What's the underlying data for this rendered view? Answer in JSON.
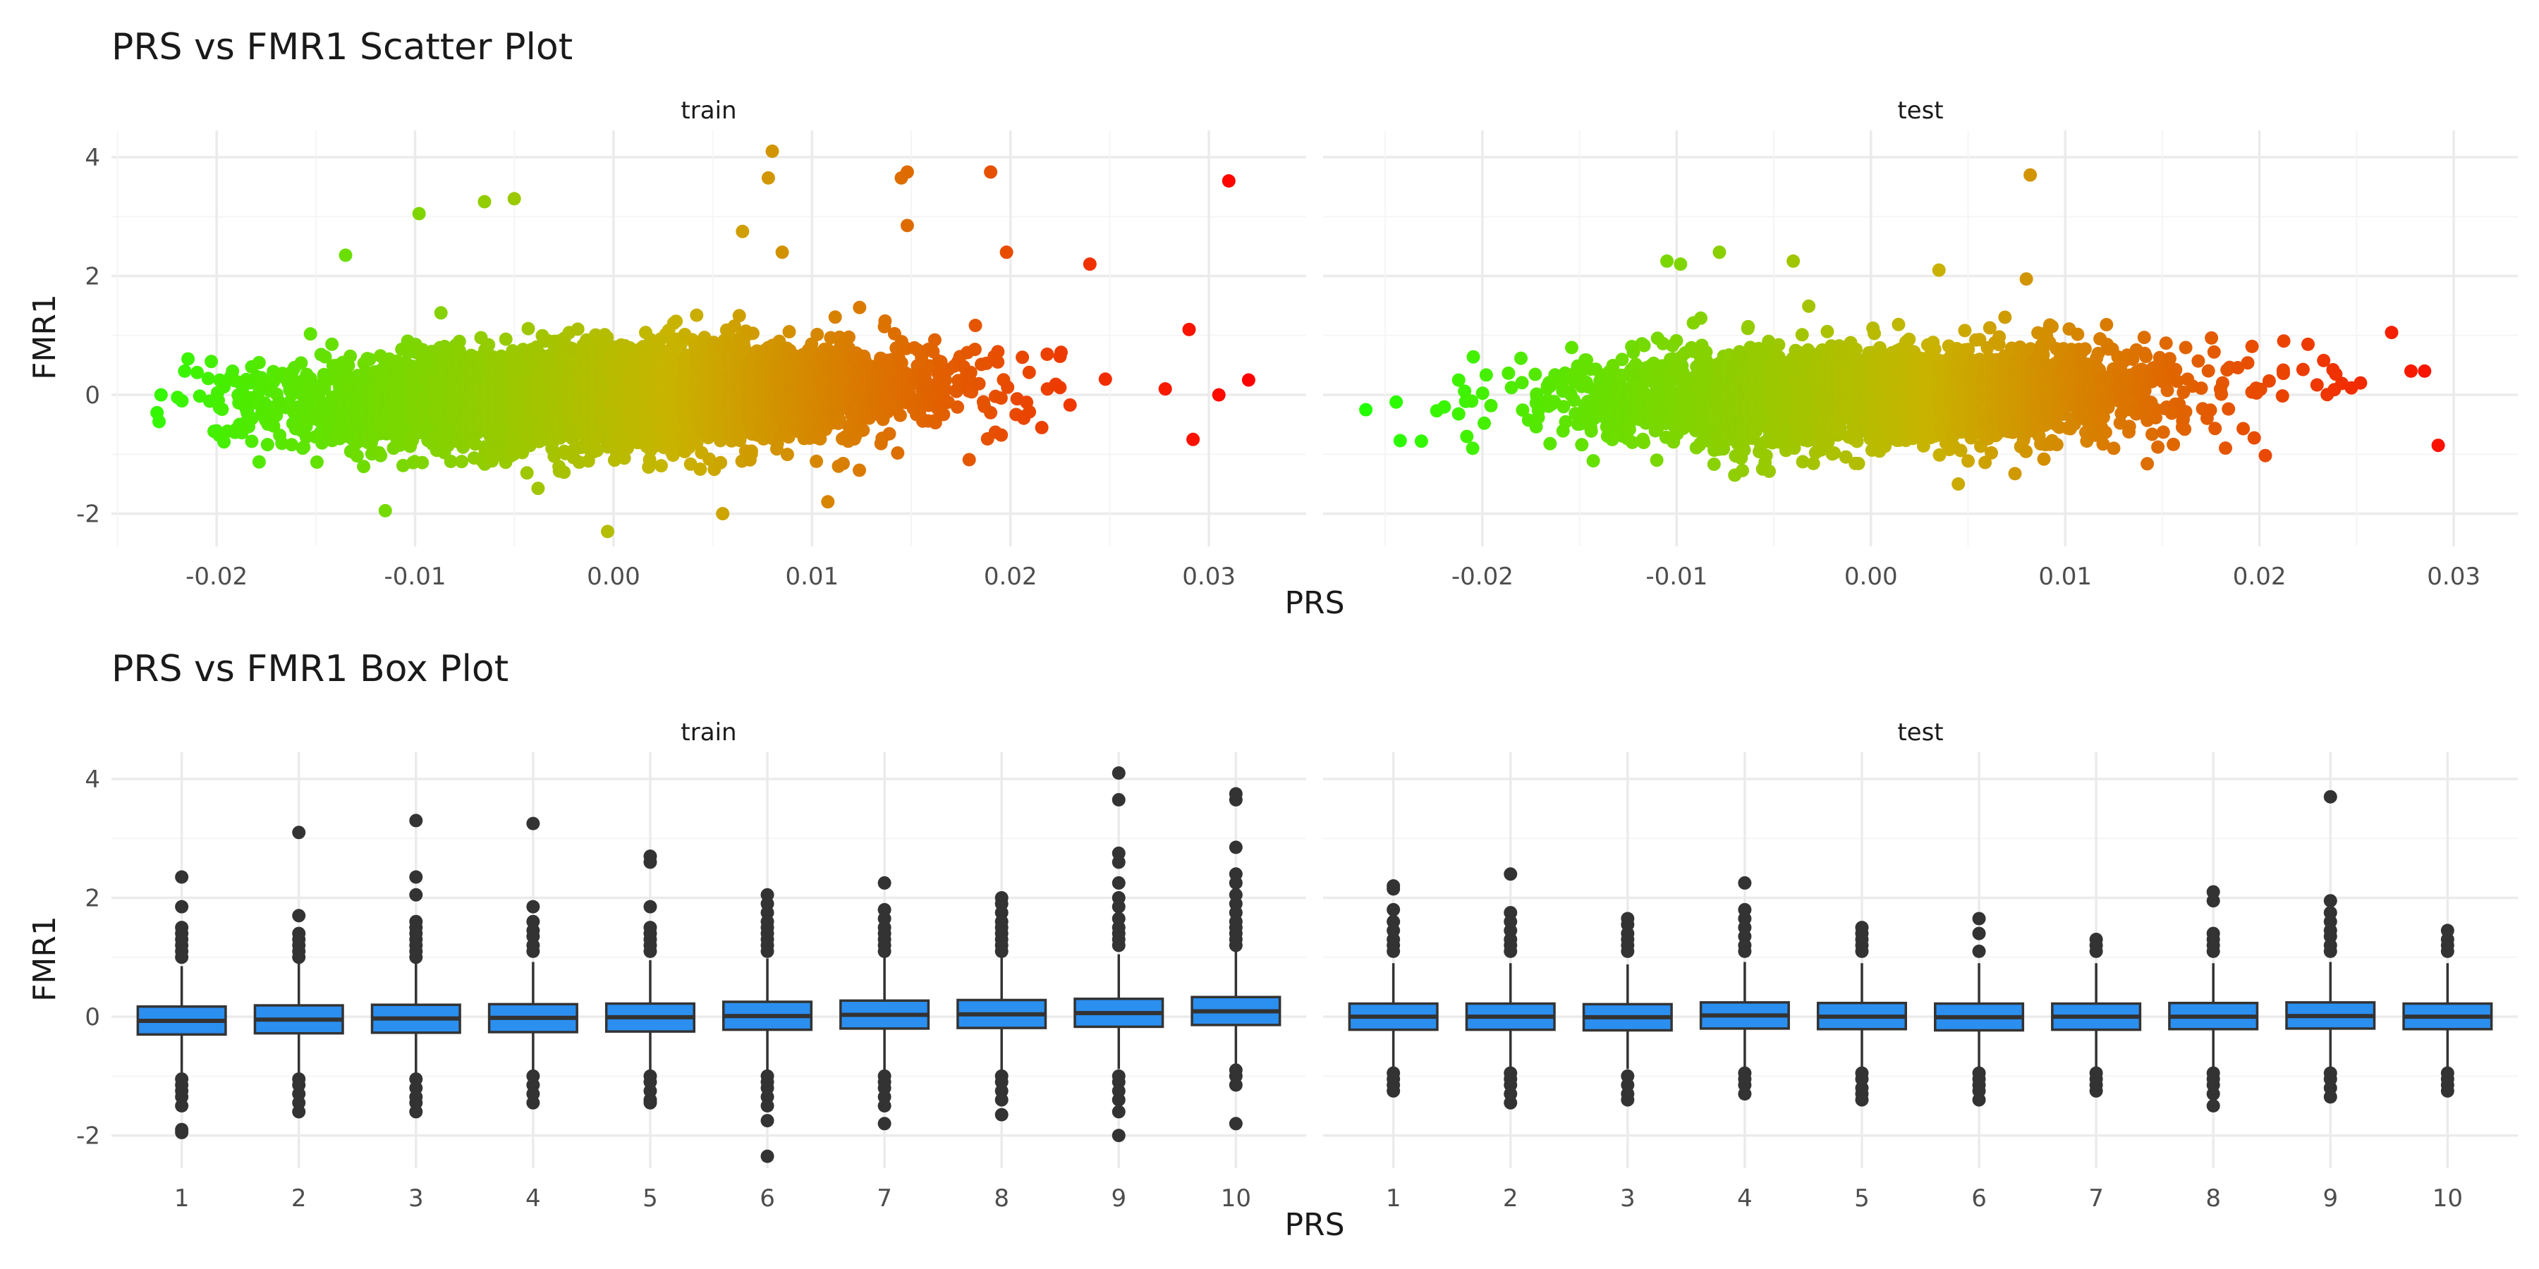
{
  "colors": {
    "background": "#ffffff",
    "grid_major": "#ebebeb",
    "grid_minor": "#f5f5f5",
    "text_dark": "#1a1a1a",
    "tick_text": "#4d4d4d",
    "box_fill": "#2b8ff0",
    "box_line": "#333333",
    "outlier": "#333333",
    "gradient_low": "#22ff00",
    "gradient_mid": "#c8b400",
    "gradient_high": "#ff0000"
  },
  "chart_data": [
    {
      "type": "scatter",
      "title": "PRS vs FMR1 Scatter Plot",
      "xlabel": "PRS",
      "ylabel": "FMR1",
      "grid": true,
      "legend": "none",
      "color_mapping": "PRS (green → yellow → red)",
      "panels": [
        {
          "name": "train",
          "xlim": [
            -0.0253,
            0.0349
          ],
          "ylim": [
            -2.55,
            4.45
          ],
          "x_ticks": [
            -0.02,
            -0.01,
            0.0,
            0.01,
            0.02,
            0.03
          ],
          "x_tick_labels": [
            "-0.02",
            "-0.01",
            "0.00",
            "0.01",
            "0.02",
            "0.03"
          ],
          "y_ticks": [
            -2,
            0,
            2,
            4
          ],
          "y_tick_labels": [
            "-2",
            "0",
            "2",
            "4"
          ],
          "x_range": [
            -0.023,
            0.032
          ],
          "main_cloud": {
            "x_mean": 0.0,
            "x_sd": 0.0075,
            "y_mean": 0.0,
            "y_sd": 0.4,
            "y_slope": 8,
            "n": 5000
          },
          "outliers": [
            {
              "x": 0.008,
              "y": 4.1
            },
            {
              "x": 0.0078,
              "y": 3.65
            },
            {
              "x": 0.031,
              "y": 3.6
            },
            {
              "x": 0.019,
              "y": 3.75
            },
            {
              "x": 0.0148,
              "y": 3.75
            },
            {
              "x": 0.0145,
              "y": 3.65
            },
            {
              "x": -0.0065,
              "y": 3.25
            },
            {
              "x": -0.005,
              "y": 3.3
            },
            {
              "x": -0.0098,
              "y": 3.05
            },
            {
              "x": 0.0065,
              "y": 2.75
            },
            {
              "x": 0.0148,
              "y": 2.85
            },
            {
              "x": -0.0135,
              "y": 2.35
            },
            {
              "x": 0.0198,
              "y": 2.4
            },
            {
              "x": 0.024,
              "y": 2.2
            },
            {
              "x": 0.0085,
              "y": 2.4
            },
            {
              "x": 0.032,
              "y": 0.25
            },
            {
              "x": 0.0305,
              "y": 0.0
            },
            {
              "x": 0.0292,
              "y": -0.75
            },
            {
              "x": 0.029,
              "y": 1.1
            },
            {
              "x": -0.0003,
              "y": -2.3
            },
            {
              "x": 0.0055,
              "y": -2.0
            },
            {
              "x": 0.0108,
              "y": -1.8
            },
            {
              "x": -0.0115,
              "y": -1.95
            },
            {
              "x": -0.0229,
              "y": -0.45
            },
            {
              "x": -0.023,
              "y": -0.3
            },
            {
              "x": -0.0228,
              "y": 0.0
            },
            {
              "x": 0.0278,
              "y": 0.1
            }
          ]
        },
        {
          "name": "test",
          "xlim": [
            -0.0282,
            0.0333
          ],
          "ylim": [
            -2.55,
            4.45
          ],
          "x_ticks": [
            -0.02,
            -0.01,
            0.0,
            0.01,
            0.02,
            0.03
          ],
          "x_tick_labels": [
            "-0.02",
            "-0.01",
            "0.00",
            "0.01",
            "0.02",
            "0.03"
          ],
          "y_ticks": [
            -2,
            0,
            2,
            4
          ],
          "y_tick_labels": [
            "-2",
            "0",
            "2",
            "4"
          ],
          "x_range": [
            -0.026,
            0.029
          ],
          "main_cloud": {
            "x_mean": 0.0,
            "x_sd": 0.0075,
            "y_mean": 0.0,
            "y_sd": 0.4,
            "y_slope": 6,
            "n": 3000
          },
          "outliers": [
            {
              "x": 0.0082,
              "y": 3.7
            },
            {
              "x": -0.0078,
              "y": 2.4
            },
            {
              "x": -0.0098,
              "y": 2.2
            },
            {
              "x": -0.0105,
              "y": 2.25
            },
            {
              "x": -0.004,
              "y": 2.25
            },
            {
              "x": 0.0035,
              "y": 2.1
            },
            {
              "x": 0.008,
              "y": 1.95
            },
            {
              "x": -0.026,
              "y": -0.25
            },
            {
              "x": -0.0205,
              "y": -0.9
            },
            {
              "x": -0.0208,
              "y": -0.7
            },
            {
              "x": 0.0292,
              "y": -0.85
            },
            {
              "x": 0.0285,
              "y": 0.4
            },
            {
              "x": 0.0278,
              "y": 0.4
            },
            {
              "x": 0.0268,
              "y": 1.05
            },
            {
              "x": 0.0252,
              "y": 0.2
            },
            {
              "x": 0.0045,
              "y": -1.5
            },
            {
              "x": 0.0225,
              "y": 0.85
            }
          ]
        }
      ]
    },
    {
      "type": "box",
      "title": "PRS vs FMR1 Box Plot",
      "xlabel": "PRS",
      "ylabel": "FMR1",
      "grid": true,
      "legend": "none",
      "categories": [
        "1",
        "2",
        "3",
        "4",
        "5",
        "6",
        "7",
        "8",
        "9",
        "10"
      ],
      "panels": [
        {
          "name": "train",
          "ylim": [
            -2.55,
            4.45
          ],
          "y_ticks": [
            -2,
            0,
            2,
            4
          ],
          "y_tick_labels": [
            "-2",
            "0",
            "2",
            "4"
          ],
          "boxes": [
            {
              "q1": -0.3,
              "median": -0.07,
              "q3": 0.17,
              "whisker_low": -0.95,
              "whisker_high": 0.85,
              "outliers": [
                2.35,
                1.85,
                1.5,
                1.4,
                1.3,
                1.2,
                1.1,
                1.0,
                -1.05,
                -1.15,
                -1.25,
                -1.35,
                -1.5,
                -1.9,
                -1.95
              ]
            },
            {
              "q1": -0.28,
              "median": -0.05,
              "q3": 0.19,
              "whisker_low": -0.95,
              "whisker_high": 0.9,
              "outliers": [
                3.1,
                1.7,
                1.4,
                1.3,
                1.2,
                1.1,
                1.0,
                -1.05,
                -1.15,
                -1.3,
                -1.45,
                -1.6
              ]
            },
            {
              "q1": -0.27,
              "median": -0.03,
              "q3": 0.2,
              "whisker_low": -0.95,
              "whisker_high": 0.9,
              "outliers": [
                3.3,
                2.35,
                2.05,
                1.6,
                1.5,
                1.4,
                1.3,
                1.2,
                1.1,
                1.0,
                -1.05,
                -1.2,
                -1.35,
                -1.45,
                -1.6
              ]
            },
            {
              "q1": -0.26,
              "median": -0.02,
              "q3": 0.21,
              "whisker_low": -0.95,
              "whisker_high": 0.92,
              "outliers": [
                3.25,
                1.85,
                1.6,
                1.45,
                1.35,
                1.2,
                1.1,
                -1.0,
                -1.15,
                -1.3,
                -1.45
              ]
            },
            {
              "q1": -0.25,
              "median": -0.01,
              "q3": 0.22,
              "whisker_low": -0.95,
              "whisker_high": 0.95,
              "outliers": [
                2.7,
                2.6,
                1.85,
                1.5,
                1.4,
                1.3,
                1.2,
                1.1,
                -1.0,
                -1.1,
                -1.25,
                -1.4,
                -1.45
              ]
            },
            {
              "q1": -0.22,
              "median": 0.01,
              "q3": 0.25,
              "whisker_low": -0.92,
              "whisker_high": 0.98,
              "outliers": [
                2.05,
                1.9,
                1.75,
                1.6,
                1.5,
                1.4,
                1.3,
                1.2,
                1.1,
                -1.0,
                -1.1,
                -1.2,
                -1.35,
                -1.5,
                -1.75,
                -2.35
              ]
            },
            {
              "q1": -0.2,
              "median": 0.03,
              "q3": 0.27,
              "whisker_low": -0.92,
              "whisker_high": 1.0,
              "outliers": [
                2.25,
                1.8,
                1.65,
                1.5,
                1.4,
                1.3,
                1.2,
                1.1,
                -1.0,
                -1.1,
                -1.2,
                -1.35,
                -1.5,
                -1.8
              ]
            },
            {
              "q1": -0.19,
              "median": 0.04,
              "q3": 0.28,
              "whisker_low": -0.9,
              "whisker_high": 1.0,
              "outliers": [
                2.0,
                1.9,
                1.75,
                1.6,
                1.5,
                1.4,
                1.3,
                1.2,
                1.1,
                -1.0,
                -1.1,
                -1.25,
                -1.4,
                -1.65
              ]
            },
            {
              "q1": -0.17,
              "median": 0.06,
              "q3": 0.3,
              "whisker_low": -0.88,
              "whisker_high": 1.05,
              "outliers": [
                4.1,
                3.65,
                2.75,
                2.6,
                2.25,
                2.0,
                1.85,
                1.65,
                1.5,
                1.4,
                1.3,
                1.2,
                -1.0,
                -1.1,
                -1.25,
                -1.4,
                -1.6,
                -2.0
              ]
            },
            {
              "q1": -0.14,
              "median": 0.09,
              "q3": 0.33,
              "whisker_low": -0.85,
              "whisker_high": 1.1,
              "outliers": [
                3.75,
                3.65,
                2.85,
                2.4,
                2.25,
                2.05,
                1.9,
                1.75,
                1.6,
                1.5,
                1.4,
                1.3,
                1.2,
                -0.9,
                -1.0,
                -1.15,
                -1.8
              ]
            }
          ]
        },
        {
          "name": "test",
          "ylim": [
            -2.55,
            4.45
          ],
          "y_ticks": [
            -2,
            0,
            2,
            4
          ],
          "y_tick_labels": [
            "-2",
            "0",
            "2",
            "4"
          ],
          "boxes": [
            {
              "q1": -0.22,
              "median": 0.0,
              "q3": 0.22,
              "whisker_low": -0.88,
              "whisker_high": 0.9,
              "outliers": [
                2.2,
                2.15,
                1.8,
                1.6,
                1.45,
                1.3,
                1.2,
                1.1,
                -0.95,
                -1.05,
                -1.15,
                -1.25
              ]
            },
            {
              "q1": -0.22,
              "median": 0.0,
              "q3": 0.22,
              "whisker_low": -0.88,
              "whisker_high": 0.9,
              "outliers": [
                2.4,
                1.75,
                1.6,
                1.45,
                1.3,
                1.2,
                1.1,
                -0.95,
                -1.05,
                -1.15,
                -1.3,
                -1.45
              ]
            },
            {
              "q1": -0.23,
              "median": -0.01,
              "q3": 0.21,
              "whisker_low": -0.88,
              "whisker_high": 0.88,
              "outliers": [
                1.65,
                1.55,
                1.4,
                1.3,
                1.2,
                1.1,
                -1.0,
                -1.15,
                -1.3,
                -1.4
              ]
            },
            {
              "q1": -0.2,
              "median": 0.02,
              "q3": 0.24,
              "whisker_low": -0.86,
              "whisker_high": 0.92,
              "outliers": [
                2.25,
                1.8,
                1.65,
                1.5,
                1.35,
                1.2,
                1.1,
                -0.95,
                -1.05,
                -1.15,
                -1.3
              ]
            },
            {
              "q1": -0.21,
              "median": 0.0,
              "q3": 0.23,
              "whisker_low": -0.88,
              "whisker_high": 0.9,
              "outliers": [
                1.5,
                1.4,
                1.3,
                1.2,
                1.1,
                -0.95,
                -1.05,
                -1.2,
                -1.3,
                -1.4
              ]
            },
            {
              "q1": -0.23,
              "median": -0.01,
              "q3": 0.22,
              "whisker_low": -0.88,
              "whisker_high": 0.9,
              "outliers": [
                1.65,
                1.4,
                1.1,
                -0.95,
                -1.05,
                -1.15,
                -1.25,
                -1.4
              ]
            },
            {
              "q1": -0.22,
              "median": 0.0,
              "q3": 0.22,
              "whisker_low": -0.88,
              "whisker_high": 0.9,
              "outliers": [
                1.3,
                1.2,
                1.1,
                -0.95,
                -1.05,
                -1.15,
                -1.25
              ]
            },
            {
              "q1": -0.21,
              "median": 0.0,
              "q3": 0.23,
              "whisker_low": -0.87,
              "whisker_high": 0.9,
              "outliers": [
                2.1,
                1.95,
                1.4,
                1.3,
                1.2,
                1.1,
                -0.95,
                -1.05,
                -1.15,
                -1.3,
                -1.5
              ]
            },
            {
              "q1": -0.2,
              "median": 0.01,
              "q3": 0.24,
              "whisker_low": -0.86,
              "whisker_high": 0.92,
              "outliers": [
                3.7,
                1.95,
                1.75,
                1.6,
                1.45,
                1.35,
                1.2,
                1.1,
                -0.95,
                -1.05,
                -1.2,
                -1.35
              ]
            },
            {
              "q1": -0.21,
              "median": 0.0,
              "q3": 0.22,
              "whisker_low": -0.88,
              "whisker_high": 0.9,
              "outliers": [
                1.45,
                1.3,
                1.2,
                1.1,
                -0.95,
                -1.05,
                -1.15,
                -1.25
              ]
            }
          ]
        }
      ]
    }
  ]
}
